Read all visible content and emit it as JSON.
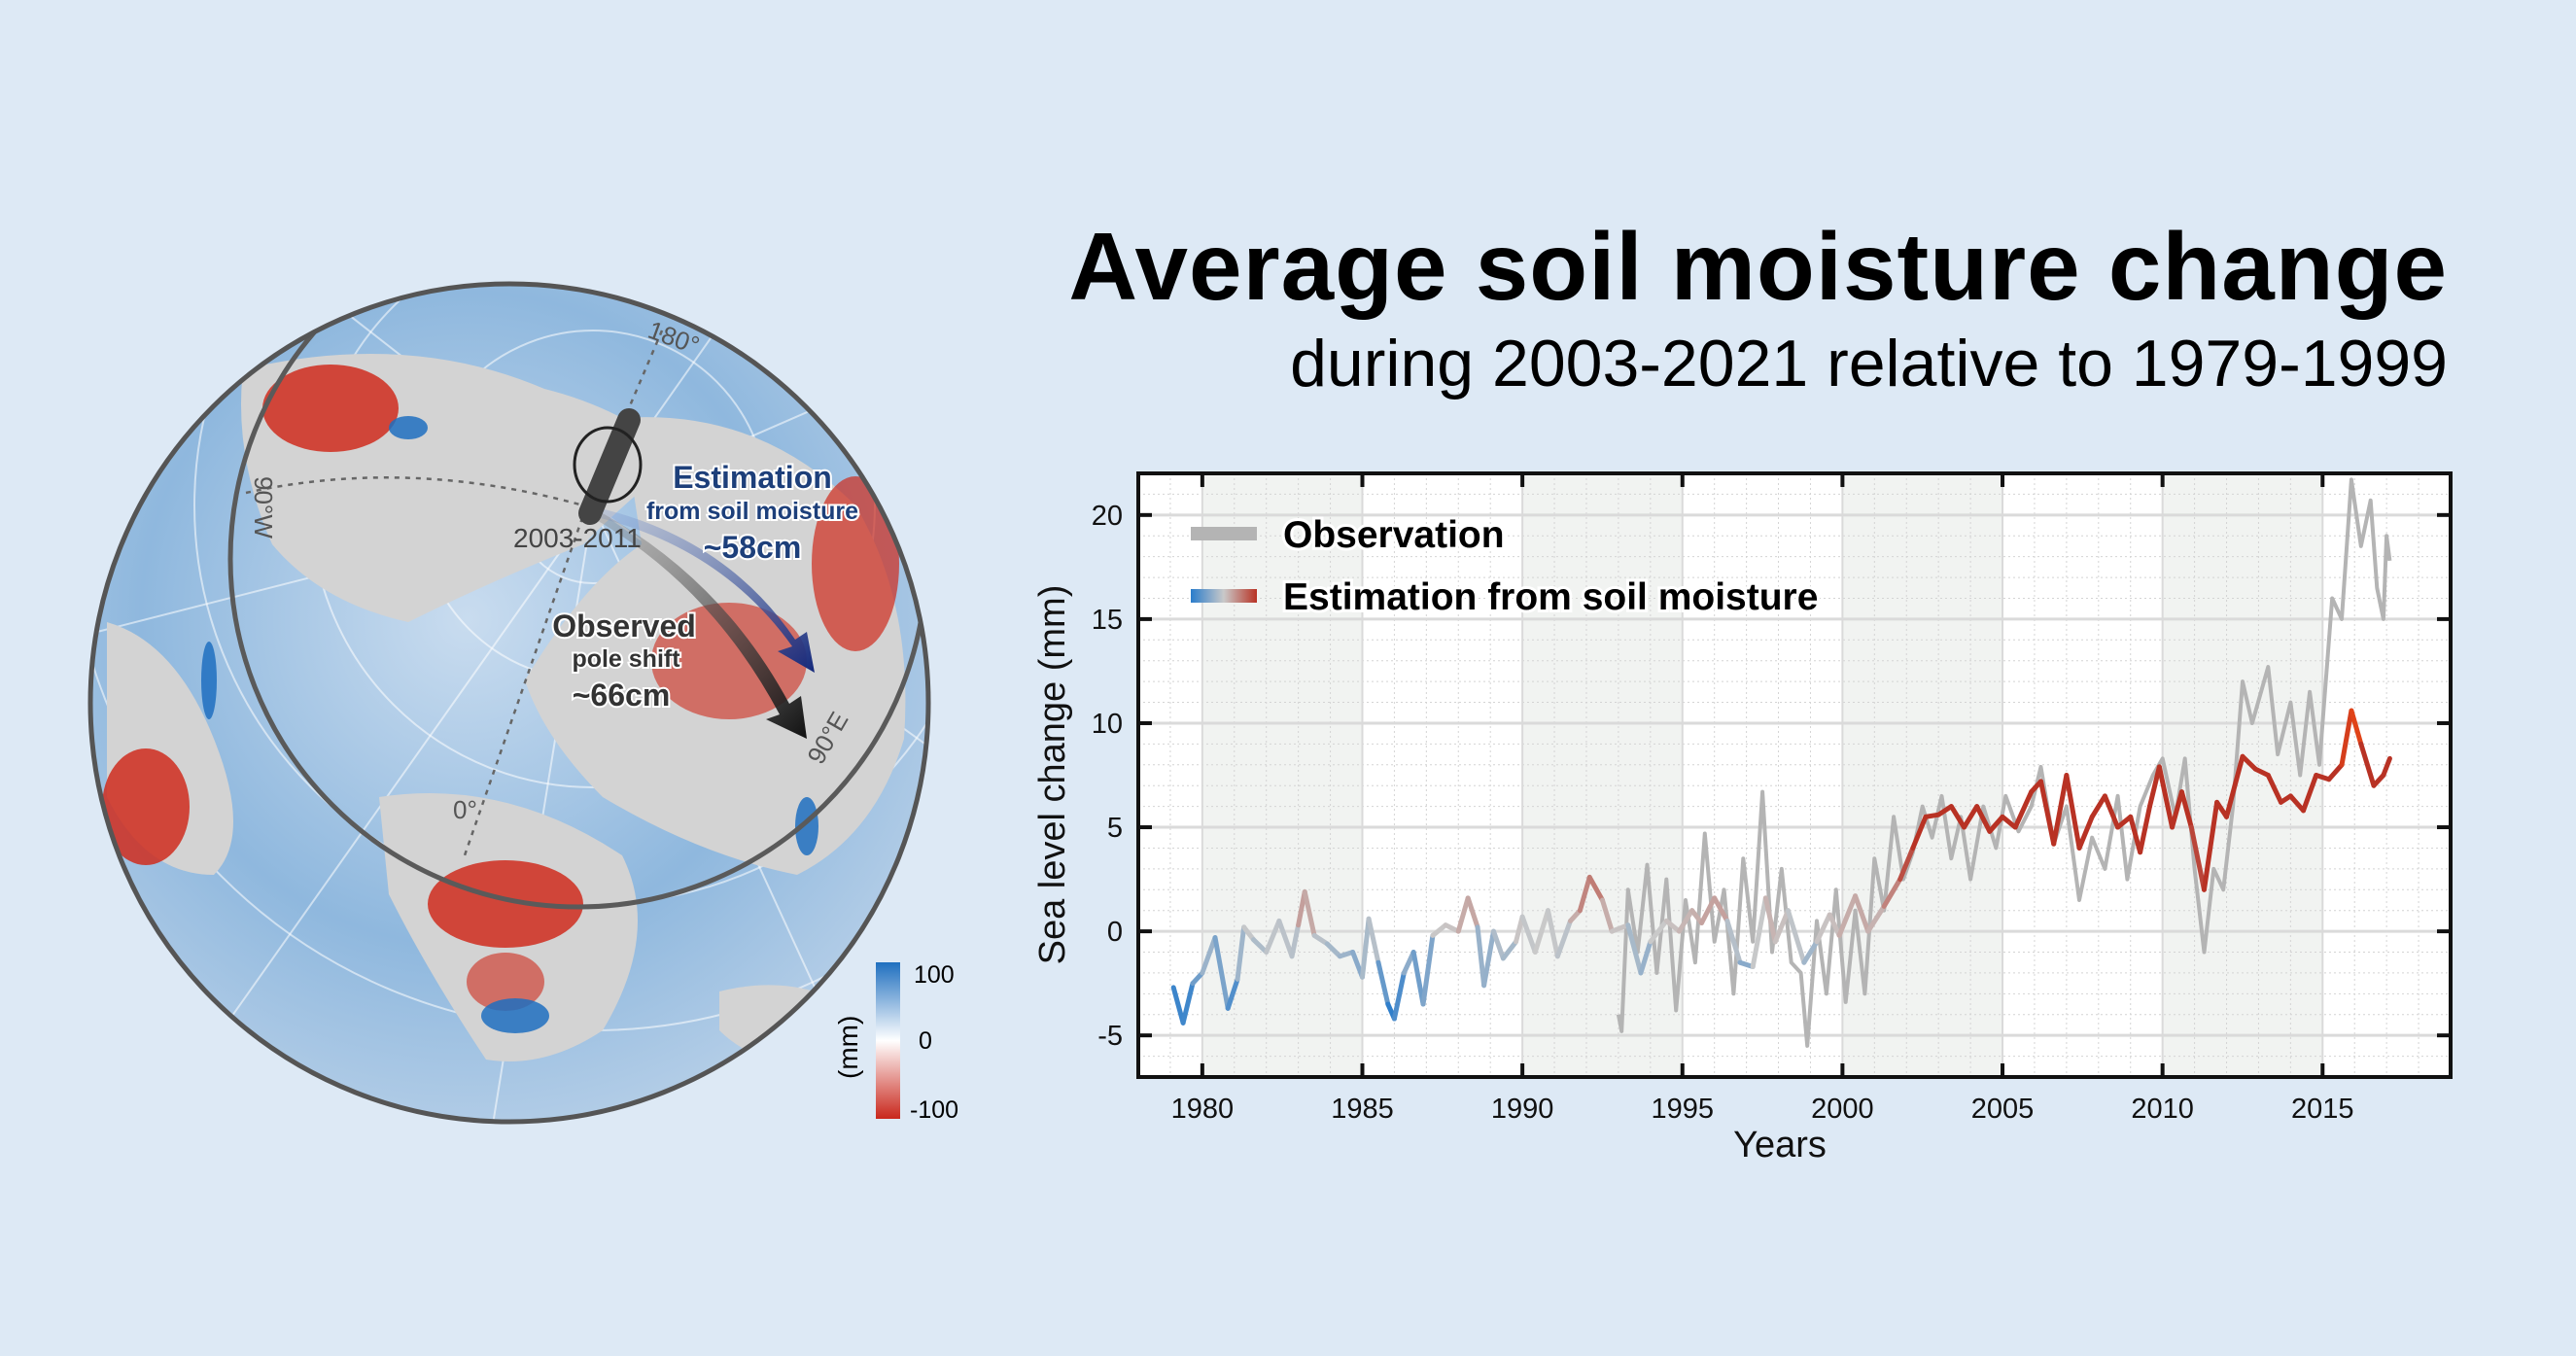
{
  "header": {
    "title": "Average soil moisture change",
    "subtitle": "during 2003-2021 relative to 1979-1999"
  },
  "map": {
    "meridian_labels": {
      "m180": "180°",
      "m90w": "90°W",
      "m90e": "90°E",
      "m0": "0°"
    },
    "period_label": "2003-2011",
    "estimation": {
      "title": "Estimation",
      "subtitle": "from soil moisture",
      "value": "~58cm",
      "color": "#1d3f7a"
    },
    "observed": {
      "title": "Observed",
      "subtitle": "pole shift",
      "value": "~66cm",
      "color": "#333333"
    },
    "colorbar": {
      "unit": "(mm)",
      "max_label": "100",
      "mid_label": "0",
      "min_label": "-100",
      "colors": [
        "#c9271c",
        "#ffffff",
        "#1f6fbf"
      ]
    },
    "land_color": "#d3d3d3",
    "ocean_color": "#8db5dc"
  },
  "chart_data": {
    "type": "line",
    "title": "",
    "xlabel": "Years",
    "ylabel": "Sea level change (mm)",
    "xlim": [
      1978,
      2019
    ],
    "ylim": [
      -7,
      22
    ],
    "xticks": [
      1980,
      1985,
      1990,
      1995,
      2000,
      2005,
      2010,
      2015
    ],
    "yticks": [
      -5,
      0,
      5,
      10,
      15,
      20
    ],
    "grid": true,
    "shaded_bands": [
      [
        1980,
        1985
      ],
      [
        1990,
        1995
      ],
      [
        2000,
        2005
      ],
      [
        2010,
        2015
      ]
    ],
    "legend_position": "top-left",
    "series": [
      {
        "name": "Observation",
        "color": "#b4b4b4",
        "x": [
          1993.0,
          1993.1,
          1993.3,
          1993.6,
          1993.9,
          1994.2,
          1994.5,
          1994.8,
          1995.1,
          1995.4,
          1995.7,
          1996.0,
          1996.3,
          1996.6,
          1996.9,
          1997.2,
          1997.5,
          1997.8,
          1998.1,
          1998.4,
          1998.7,
          1998.9,
          1999.2,
          1999.5,
          1999.8,
          2000.1,
          2000.4,
          2000.7,
          2001.0,
          2001.3,
          2001.6,
          2001.9,
          2002.2,
          2002.5,
          2002.8,
          2003.1,
          2003.4,
          2003.7,
          2004.0,
          2004.4,
          2004.8,
          2005.1,
          2005.5,
          2005.9,
          2006.2,
          2006.6,
          2007.0,
          2007.4,
          2007.8,
          2008.2,
          2008.6,
          2008.9,
          2009.3,
          2009.7,
          2010.0,
          2010.4,
          2010.7,
          2011.0,
          2011.3,
          2011.6,
          2011.9,
          2012.2,
          2012.5,
          2012.8,
          2013.3,
          2013.6,
          2014.0,
          2014.3,
          2014.6,
          2014.9,
          2015.1,
          2015.3,
          2015.6,
          2015.9,
          2016.2,
          2016.5,
          2016.7,
          2016.9,
          2017.0,
          2017.1
        ],
        "y": [
          -4.0,
          -4.8,
          2.0,
          -1.0,
          3.2,
          -2.0,
          2.5,
          -3.8,
          1.5,
          -1.5,
          4.7,
          -0.5,
          2.0,
          -3.0,
          3.5,
          -0.5,
          6.7,
          -1.0,
          3.0,
          -1.5,
          -2.0,
          -5.5,
          0.5,
          -3.0,
          2.0,
          -3.4,
          1.0,
          -3.0,
          3.5,
          1.0,
          5.5,
          2.5,
          3.8,
          6.0,
          4.5,
          6.5,
          3.5,
          5.5,
          2.5,
          6.0,
          4.0,
          6.5,
          4.8,
          6.0,
          7.9,
          4.2,
          6.0,
          1.5,
          4.5,
          3.0,
          6.5,
          2.5,
          6.0,
          7.5,
          8.3,
          5.5,
          8.3,
          3.0,
          -1.0,
          3.0,
          2.0,
          6.0,
          12.0,
          10.0,
          12.7,
          8.5,
          11.0,
          7.5,
          11.5,
          8.0,
          12.0,
          16.0,
          15.0,
          21.7,
          18.5,
          20.7,
          16.5,
          15.0,
          19.0,
          17.8
        ]
      },
      {
        "name": "Estimation from soil moisture",
        "colors": [
          "#2a7ccb",
          "#c9c9c9",
          "#b83224",
          "#f04a14"
        ],
        "x": [
          1979.1,
          1979.4,
          1979.7,
          1980.0,
          1980.4,
          1980.8,
          1981.1,
          1981.3,
          1981.6,
          1982.0,
          1982.4,
          1982.8,
          1983.0,
          1983.2,
          1983.5,
          1983.9,
          1984.3,
          1984.7,
          1985.0,
          1985.2,
          1985.5,
          1985.8,
          1986.0,
          1986.3,
          1986.6,
          1986.9,
          1987.2,
          1987.6,
          1988.0,
          1988.3,
          1988.6,
          1988.8,
          1989.1,
          1989.4,
          1989.8,
          1990.0,
          1990.4,
          1990.8,
          1991.1,
          1991.5,
          1991.8,
          1992.1,
          1992.5,
          1992.8,
          1993.3,
          1993.7,
          1994.0,
          1994.5,
          1994.9,
          1995.3,
          1995.6,
          1996.0,
          1996.4,
          1996.8,
          1997.2,
          1997.6,
          1997.9,
          1998.3,
          1998.8,
          1999.2,
          1999.6,
          1999.9,
          2000.4,
          2000.8,
          2001.3,
          2001.8,
          2002.2,
          2002.6,
          2003.0,
          2003.4,
          2003.8,
          2004.2,
          2004.6,
          2005.0,
          2005.4,
          2005.9,
          2006.2,
          2006.6,
          2007.0,
          2007.4,
          2007.8,
          2008.2,
          2008.6,
          2009.0,
          2009.3,
          2009.6,
          2009.9,
          2010.3,
          2010.6,
          2010.9,
          2011.3,
          2011.7,
          2012.0,
          2012.5,
          2012.9,
          2013.3,
          2013.7,
          2014.0,
          2014.4,
          2014.8,
          2015.2,
          2015.6,
          2015.9,
          2016.2,
          2016.6,
          2016.9,
          2017.1
        ],
        "y": [
          -2.7,
          -4.4,
          -2.5,
          -2.0,
          -0.3,
          -3.7,
          -2.3,
          0.2,
          -0.4,
          -1.0,
          0.5,
          -1.2,
          0.3,
          1.9,
          -0.2,
          -0.6,
          -1.2,
          -1.0,
          -2.2,
          0.6,
          -1.5,
          -3.5,
          -4.2,
          -2.0,
          -1.0,
          -3.5,
          -0.2,
          0.3,
          0.0,
          1.6,
          0.2,
          -2.6,
          0.0,
          -1.3,
          -0.5,
          0.7,
          -1.0,
          1.0,
          -1.2,
          0.5,
          1.0,
          2.6,
          1.5,
          0.0,
          0.3,
          -2.0,
          -0.5,
          0.5,
          0.0,
          1.0,
          0.4,
          1.6,
          0.5,
          -1.5,
          -1.7,
          1.6,
          -0.5,
          1.0,
          -1.5,
          -0.5,
          0.8,
          -0.2,
          1.7,
          0.0,
          1.2,
          2.5,
          4.0,
          5.5,
          5.6,
          6.0,
          5.0,
          6.0,
          4.8,
          5.5,
          5.0,
          6.7,
          7.2,
          4.2,
          7.5,
          4.0,
          5.5,
          6.5,
          5.0,
          5.5,
          3.8,
          6.0,
          7.9,
          5.0,
          6.7,
          5.0,
          2.0,
          6.2,
          5.5,
          8.4,
          7.8,
          7.5,
          6.2,
          6.5,
          5.8,
          7.5,
          7.3,
          8.0,
          10.6,
          9.0,
          7.0,
          7.5,
          8.3
        ]
      }
    ]
  }
}
